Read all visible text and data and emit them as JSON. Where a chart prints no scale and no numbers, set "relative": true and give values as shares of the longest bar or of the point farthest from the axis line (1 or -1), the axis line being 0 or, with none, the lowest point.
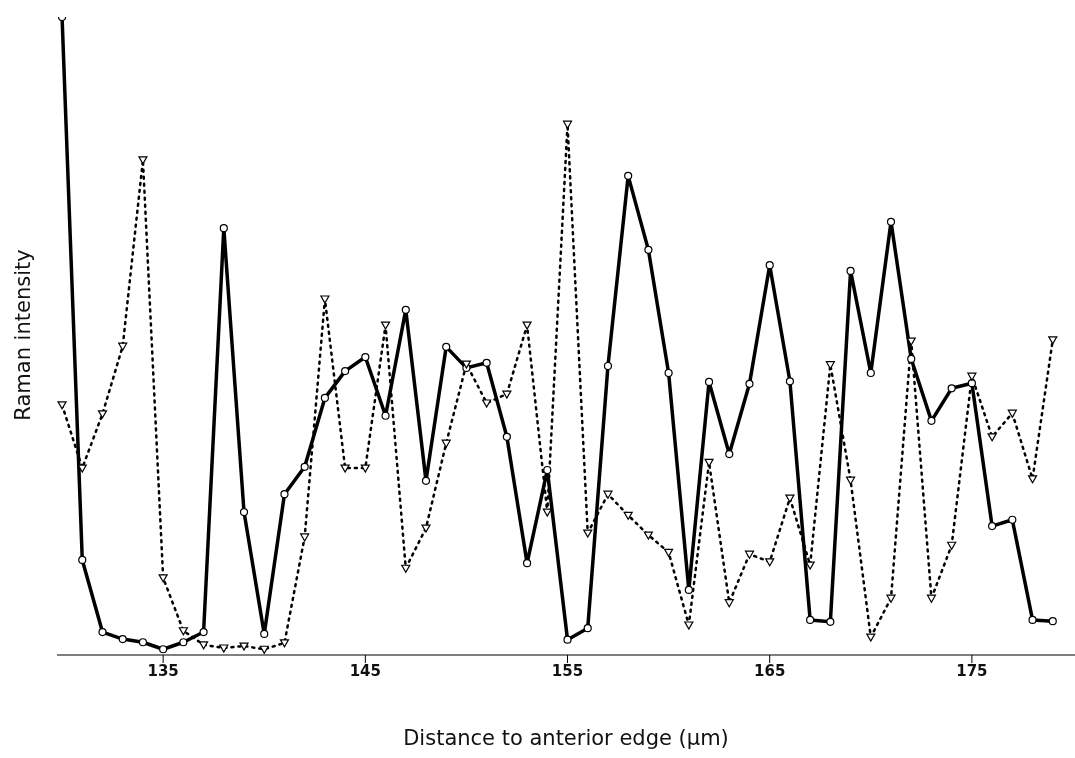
{
  "chart_data": {
    "type": "line",
    "relative": true,
    "xlabel": "Distance to anterior edge (μm)",
    "ylabel": "Raman intensity",
    "x": [
      130,
      131,
      132,
      133,
      134,
      135,
      136,
      137,
      138,
      139,
      140,
      141,
      142,
      143,
      144,
      145,
      146,
      147,
      148,
      149,
      150,
      151,
      152,
      153,
      154,
      155,
      156,
      157,
      158,
      159,
      160,
      161,
      162,
      163,
      164,
      165,
      166,
      167,
      168,
      169,
      170,
      171,
      172,
      173,
      174,
      175,
      176,
      177,
      178,
      179
    ],
    "xlim": [
      129.75,
      180.1
    ],
    "xticks": [
      135,
      145,
      155,
      165,
      175
    ],
    "grid": false,
    "legend": false,
    "series": [
      {
        "color": "#000000",
        "marker": "circle",
        "line_style": "solid",
        "values": [
          1.0,
          0.149,
          0.036,
          0.025,
          0.02,
          0.009,
          0.02,
          0.036,
          0.669,
          0.224,
          0.033,
          0.252,
          0.295,
          0.403,
          0.445,
          0.467,
          0.375,
          0.541,
          0.273,
          0.483,
          0.45,
          0.458,
          0.342,
          0.144,
          0.29,
          0.024,
          0.042,
          0.453,
          0.751,
          0.635,
          0.442,
          0.102,
          0.428,
          0.315,
          0.425,
          0.611,
          0.429,
          0.055,
          0.052,
          0.602,
          0.442,
          0.679,
          0.464,
          0.367,
          0.418,
          0.426,
          0.202,
          0.212,
          0.055,
          0.053
        ]
      },
      {
        "color": "#000000",
        "marker": "triangle",
        "line_style": "dotted",
        "values": [
          0.392,
          0.293,
          0.378,
          0.484,
          0.776,
          0.121,
          0.038,
          0.016,
          0.011,
          0.014,
          0.009,
          0.019,
          0.185,
          0.558,
          0.293,
          0.293,
          0.517,
          0.136,
          0.199,
          0.332,
          0.456,
          0.395,
          0.409,
          0.517,
          0.224,
          0.832,
          0.191,
          0.252,
          0.219,
          0.188,
          0.161,
          0.047,
          0.302,
          0.082,
          0.158,
          0.146,
          0.246,
          0.141,
          0.455,
          0.274,
          0.028,
          0.089,
          0.492,
          0.089,
          0.172,
          0.437,
          0.342,
          0.379,
          0.276,
          0.494
        ]
      }
    ]
  }
}
